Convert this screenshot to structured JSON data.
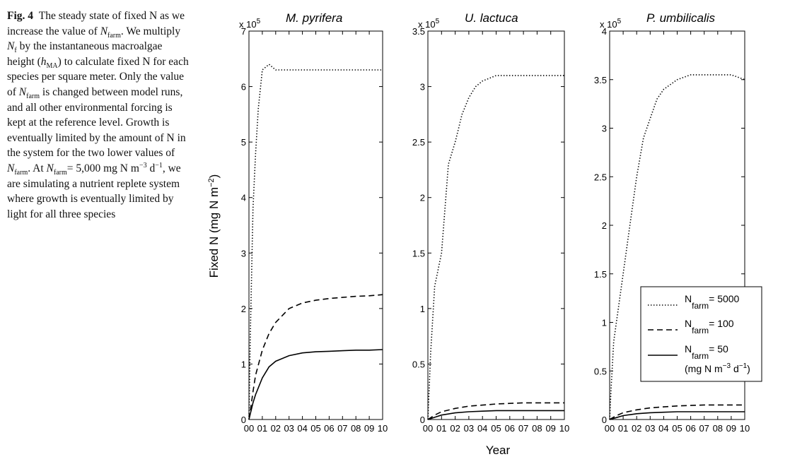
{
  "caption": {
    "fig_label": "Fig. 4",
    "text_1": "The steady state of fixed N as we increase the value of",
    "nfarm_N": "N",
    "nfarm_sub": "farm",
    "text_2": ". We multiply",
    "nf_N": "N",
    "nf_sub": "f",
    "text_3": "by the instantaneous macroalgae height (",
    "hma_h": "h",
    "hma_sub": "MA",
    "text_4": ") to calculate fixed N for each species per square meter. Only the value of",
    "text_5": "is changed between model runs, and all other environmental forcing is kept at the reference level. Growth is eventually limited by the amount of N in the system for the two lower values of",
    "text_6": ". At",
    "text_7": "= 5,000 mg N m",
    "sup_m3": "−3",
    "text_8": " d",
    "sup_d1": "−1",
    "text_9": ", we are simulating a nutrient replete system where growth is eventually limited by light for all three species"
  },
  "chart_data": [
    {
      "type": "line",
      "title": "M. pyrifera",
      "exponent_label": "x 10",
      "exponent": "5",
      "ylabel": "Fixed N (mg N m",
      "ylabel_sup": "−2",
      "ylabel_close": ")",
      "ylim": [
        0,
        7
      ],
      "yticks": [
        "0",
        "1",
        "2",
        "3",
        "4",
        "5",
        "6",
        "7"
      ],
      "xlim": [
        0,
        10
      ],
      "xticks": [
        "00",
        "01",
        "02",
        "03",
        "04",
        "05",
        "06",
        "07",
        "08",
        "09",
        "10"
      ],
      "series": [
        {
          "style": "dotted",
          "x": [
            0,
            0.1,
            0.3,
            0.5,
            0.7,
            1.0,
            1.5,
            2,
            3,
            4,
            5,
            6,
            7,
            8,
            9,
            10
          ],
          "values": [
            0,
            1.5,
            3.8,
            4.8,
            5.6,
            6.3,
            6.4,
            6.3,
            6.3,
            6.3,
            6.3,
            6.3,
            6.3,
            6.3,
            6.3,
            6.3
          ]
        },
        {
          "style": "dashed",
          "x": [
            0,
            0.1,
            0.3,
            0.5,
            1,
            1.5,
            2,
            3,
            4,
            5,
            6,
            7,
            8,
            9,
            10
          ],
          "values": [
            0,
            0.15,
            0.5,
            0.8,
            1.25,
            1.55,
            1.75,
            2.0,
            2.1,
            2.15,
            2.18,
            2.2,
            2.22,
            2.23,
            2.25
          ]
        },
        {
          "style": "solid",
          "x": [
            0,
            0.1,
            0.3,
            0.5,
            1,
            1.5,
            2,
            3,
            4,
            5,
            6,
            7,
            8,
            9,
            10
          ],
          "values": [
            0,
            0.1,
            0.3,
            0.45,
            0.75,
            0.95,
            1.05,
            1.15,
            1.2,
            1.22,
            1.23,
            1.24,
            1.25,
            1.25,
            1.26
          ]
        }
      ]
    },
    {
      "type": "line",
      "title": "U. lactuca",
      "exponent_label": "x 10",
      "exponent": "5",
      "ylim": [
        0,
        3.5
      ],
      "yticks": [
        "0",
        "0.5",
        "1",
        "1.5",
        "2",
        "2.5",
        "3",
        "3.5"
      ],
      "xlim": [
        0,
        10
      ],
      "xticks": [
        "00",
        "01",
        "02",
        "03",
        "04",
        "05",
        "06",
        "07",
        "08",
        "09",
        "10"
      ],
      "series": [
        {
          "style": "dotted",
          "x": [
            0,
            0.2,
            0.5,
            1,
            1.5,
            2,
            2.5,
            3,
            3.5,
            4,
            5,
            6,
            7,
            8,
            9,
            10
          ],
          "values": [
            0,
            0.6,
            1.2,
            1.5,
            2.3,
            2.5,
            2.75,
            2.9,
            3.0,
            3.05,
            3.1,
            3.1,
            3.1,
            3.1,
            3.1,
            3.1
          ]
        },
        {
          "style": "dashed",
          "x": [
            0,
            0.5,
            1,
            2,
            3,
            4,
            5,
            6,
            7,
            8,
            9,
            10
          ],
          "values": [
            0,
            0.04,
            0.07,
            0.1,
            0.12,
            0.13,
            0.14,
            0.145,
            0.15,
            0.15,
            0.15,
            0.15
          ]
        },
        {
          "style": "solid",
          "x": [
            0,
            0.5,
            1,
            2,
            3,
            4,
            5,
            6,
            7,
            8,
            9,
            10
          ],
          "values": [
            0,
            0.02,
            0.04,
            0.06,
            0.07,
            0.075,
            0.08,
            0.08,
            0.08,
            0.08,
            0.08,
            0.08
          ]
        }
      ]
    },
    {
      "type": "line",
      "title": "P. umbilicalis",
      "exponent_label": "x 10",
      "exponent": "5",
      "ylim": [
        0,
        4
      ],
      "yticks": [
        "0",
        "0.5",
        "1",
        "1.5",
        "2",
        "2.5",
        "3",
        "3.5",
        "4"
      ],
      "xlim": [
        0,
        10
      ],
      "xticks": [
        "00",
        "01",
        "02",
        "03",
        "04",
        "05",
        "06",
        "07",
        "08",
        "09",
        "10"
      ],
      "series": [
        {
          "style": "dotted",
          "x": [
            0,
            0.1,
            0.3,
            0.5,
            1,
            1.5,
            2,
            2.5,
            3,
            3.5,
            4,
            5,
            6,
            7,
            8,
            9,
            10
          ],
          "values": [
            0,
            0.3,
            0.8,
            1.0,
            1.5,
            2.0,
            2.5,
            2.9,
            3.1,
            3.3,
            3.4,
            3.5,
            3.55,
            3.55,
            3.55,
            3.55,
            3.5
          ]
        },
        {
          "style": "dashed",
          "x": [
            0,
            0.5,
            1,
            2,
            3,
            4,
            5,
            6,
            7,
            8,
            9,
            10
          ],
          "values": [
            0,
            0.04,
            0.07,
            0.1,
            0.12,
            0.13,
            0.14,
            0.145,
            0.15,
            0.15,
            0.15,
            0.15
          ]
        },
        {
          "style": "solid",
          "x": [
            0,
            0.5,
            1,
            2,
            3,
            4,
            5,
            6,
            7,
            8,
            9,
            10
          ],
          "values": [
            0,
            0.02,
            0.04,
            0.06,
            0.07,
            0.075,
            0.08,
            0.08,
            0.08,
            0.08,
            0.08,
            0.08
          ]
        }
      ],
      "legend": {
        "placement": "lower-right",
        "entries": [
          {
            "style": "dotted",
            "N": "N",
            "sub": "farm",
            "value": "= 5000"
          },
          {
            "style": "dashed",
            "N": "N",
            "sub": "farm",
            "value": "= 100"
          },
          {
            "style": "solid",
            "N": "N",
            "sub": "farm",
            "value": "= 50"
          }
        ],
        "units": "(mg N m",
        "units_sup1": "−3",
        "units_mid": " d",
        "units_sup2": "−1",
        "units_close": ")"
      }
    }
  ],
  "xlabel": "Year"
}
